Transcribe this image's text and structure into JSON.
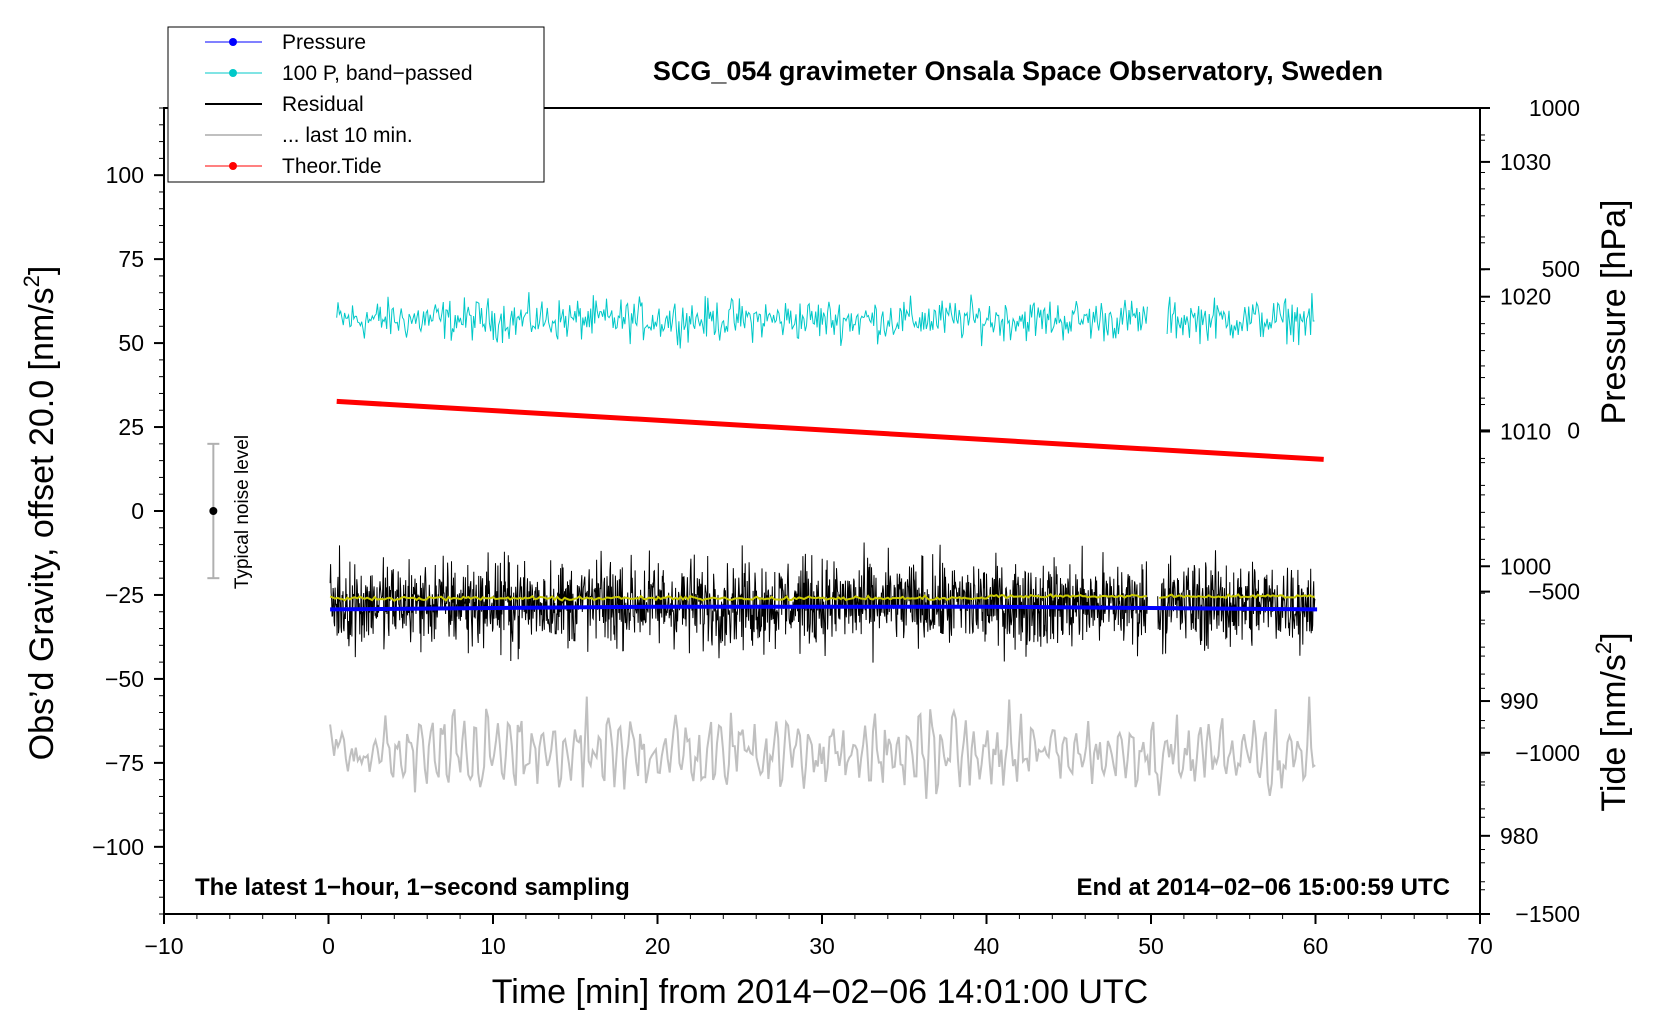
{
  "chart_data": {
    "type": "line",
    "title": "SCG_054 gravimeter Onsala Space Observatory, Sweden",
    "xlabel": "Time [min] from 2014−02−06 14:01:00 UTC",
    "ylabel_left": "Obs’d Gravity, offset 20.0 [nm/s",
    "ylabel_left_sup": "2",
    "ylabel_left_end": "]",
    "ylabel_right_pressure": "Pressure [hPa]",
    "ylabel_right_tide": "Tide [nm/s",
    "ylabel_right_tide_sup": "2",
    "ylabel_right_tide_end": "]",
    "xlim": [
      -10,
      70
    ],
    "ylim_left": [
      -120,
      120
    ],
    "x_ticks": [
      "−10",
      "0",
      "10",
      "20",
      "30",
      "40",
      "50",
      "60",
      "70"
    ],
    "x_tick_values": [
      -10,
      0,
      10,
      20,
      30,
      40,
      50,
      60,
      70
    ],
    "y_left_ticks": [
      "−100",
      "−75",
      "−50",
      "−25",
      "0",
      "25",
      "50",
      "75",
      "100"
    ],
    "y_left_tick_values": [
      -100,
      -75,
      -50,
      -25,
      0,
      25,
      50,
      75,
      100
    ],
    "pressure_axis": {
      "range": [
        974.2,
        1034.0
      ],
      "ticks": [
        "980",
        "990",
        "1000",
        "1010",
        "1020",
        "1030"
      ],
      "tick_values": [
        980,
        990,
        1000,
        1010,
        1020,
        1030
      ]
    },
    "tide_axis": {
      "range": [
        -1500,
        1000
      ],
      "ticks": [
        "−1500",
        "−1000",
        "−500",
        "0",
        "500",
        "1000"
      ],
      "tick_values": [
        -1500,
        -1000,
        -500,
        0,
        500,
        1000
      ]
    },
    "series": [
      {
        "name": "Pressure",
        "color": "#0000ff",
        "axis": "pressure",
        "x": [
          0.1,
          10,
          20,
          30,
          40,
          50,
          60.1
        ],
        "values": [
          996.8,
          996.9,
          997.0,
          997.0,
          997.0,
          996.9,
          996.8
        ]
      },
      {
        "name": "100 P, band−passed",
        "color": "#00c8c8",
        "axis": "left",
        "x_range": [
          0.5,
          60
        ],
        "level": 57,
        "amplitude": 7,
        "gap": [
          49.8,
          50.9
        ]
      },
      {
        "name": "Residual",
        "color": "#000000",
        "axis": "left",
        "x_range": [
          0.1,
          60
        ],
        "level": -27.5,
        "amplitude": 12,
        "gap": [
          49.8,
          50.4
        ]
      },
      {
        "name": "... last 10 min.",
        "color": "#c0c0c0",
        "axis": "left",
        "x_range": [
          0.1,
          60
        ],
        "level": -72,
        "amplitude": 12
      },
      {
        "name": "Theor.Tide",
        "color": "#ff0000",
        "axis": "tide",
        "x": [
          0.5,
          60.5
        ],
        "values": [
          90,
          -90
        ]
      }
    ],
    "smoothed_residual": {
      "color": "#c8c800",
      "x_range": [
        0.1,
        60
      ],
      "level": -27.5
    },
    "noise_bar": {
      "label": "Typical noise level",
      "x": -7,
      "center": 0,
      "half_range": 20
    },
    "annotations": {
      "bottom_left": "The latest 1−hour, 1−second sampling",
      "bottom_right": "End at 2014−02−06 15:00:59 UTC"
    },
    "legend_position": "top-left"
  }
}
